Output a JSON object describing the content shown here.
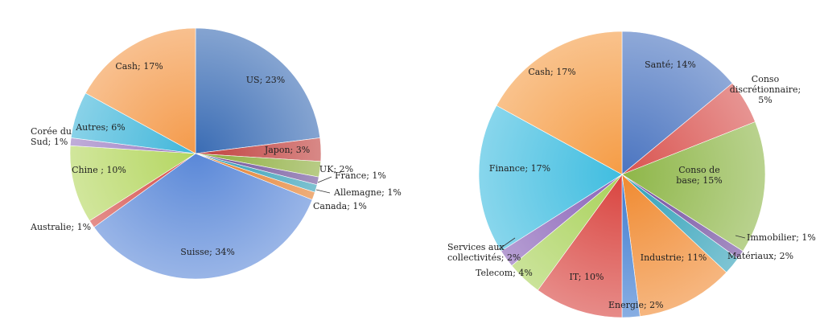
{
  "chart_data": [
    {
      "type": "pie",
      "categories": [
        "US",
        "Japon",
        "UK",
        "France",
        "Allemagne",
        "Canada",
        "Suisse",
        "Australie",
        "Chine",
        "Corée du Sud",
        "Autres",
        "Cash"
      ],
      "values": [
        23,
        3,
        2,
        1,
        1,
        1,
        34,
        1,
        10,
        1,
        6,
        17
      ],
      "labels": [
        "US; 23%",
        "Japon; 3%",
        "UK; 2%",
        "France; 1%",
        "Allemagne; 1%",
        "Canada; 1%",
        "Suisse; 34%",
        "Australie; 1%",
        "Chine ; 10%",
        "Corée du Sud; 1%",
        "Autres; 6%",
        "Cash; 17%"
      ],
      "colors": [
        "#3a6cb4",
        "#c0403e",
        "#8cad3c",
        "#6d4f99",
        "#2f9cb5",
        "#e37d2a",
        "#5a88d8",
        "#d44a45",
        "#b4d660",
        "#9a7bc2",
        "#40b6da",
        "#f49a4a"
      ],
      "start_angle_deg": 0,
      "direction": "clockwise"
    },
    {
      "type": "pie",
      "categories": [
        "Santé",
        "Conso discrétionnaire",
        "Conso de base",
        "Immobilier",
        "Matériaux",
        "Industrie",
        "Energie",
        "IT",
        "Telecom",
        "Services aux collectivités",
        "Finance",
        "Cash"
      ],
      "values": [
        14,
        5,
        15,
        1,
        2,
        11,
        2,
        10,
        4,
        2,
        17,
        17
      ],
      "labels": [
        "Santé; 14%",
        "Conso discrétionnaire; 5%",
        "Conso de base; 15%",
        "Immobilier; 1%",
        "Matériaux; 2%",
        "Industrie; 11%",
        "Energie; 2%",
        "IT; 10%",
        "Telecom; 4%",
        "Services aux collectivités; 2%",
        "Finance; 17%",
        "Cash; 17%"
      ],
      "colors": [
        "#4a74c0",
        "#d9534f",
        "#8eb648",
        "#6f4a9e",
        "#2fa0b8",
        "#f08a30",
        "#3f7cd0",
        "#d9443f",
        "#a9d25a",
        "#8a63b8",
        "#3fbde0",
        "#f59c45"
      ],
      "start_angle_deg": 0,
      "direction": "clockwise"
    }
  ]
}
